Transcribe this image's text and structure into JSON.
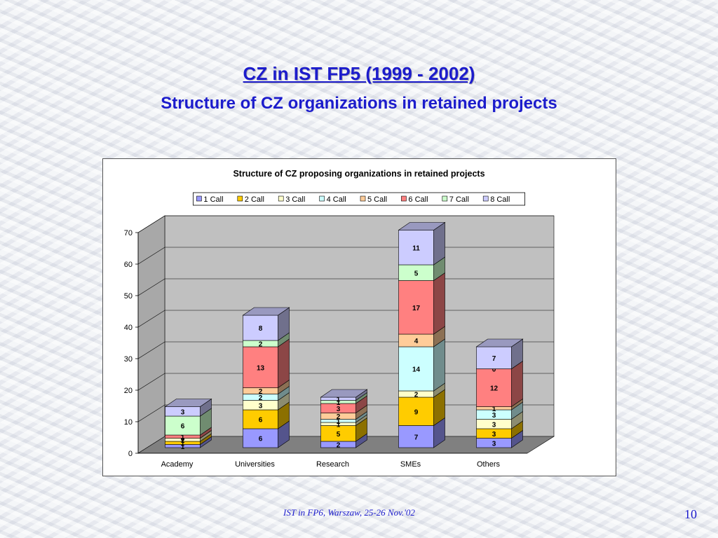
{
  "slide": {
    "title": "CZ in IST FP5 (1999 - 2002)",
    "subtitle": "Structure of CZ organizations in retained projects",
    "footer": "IST in FP6, Warszaw, 25-26 Nov.'02",
    "page_number": "10"
  },
  "chart_data": {
    "type": "bar",
    "stacked": true,
    "three_d": true,
    "title": "Structure of CZ proposing organizations in retained projects",
    "categories": [
      "Academy",
      "Universities",
      "Research",
      "SMEs",
      "Others"
    ],
    "ylim": [
      0,
      70
    ],
    "yticks": [
      0,
      10,
      20,
      30,
      40,
      50,
      60,
      70
    ],
    "grid": true,
    "legend_position": "top",
    "series": [
      {
        "name": "1 Call",
        "color": "#9999ff",
        "values": [
          1,
          6,
          2,
          7,
          3
        ],
        "labels": [
          "1",
          "6",
          "2",
          "7",
          "3"
        ]
      },
      {
        "name": "2 Call",
        "color": "#ffcc00",
        "values": [
          1,
          6,
          5,
          9,
          3
        ],
        "labels": [
          "1",
          "6",
          "5",
          "9",
          "3"
        ]
      },
      {
        "name": "3 Call",
        "color": "#ffffcc",
        "values": [
          1,
          3,
          1,
          2,
          3
        ],
        "labels": [
          "1",
          "3",
          "1",
          "2",
          "3"
        ]
      },
      {
        "name": "4 Call",
        "color": "#ccffff",
        "values": [
          0,
          2,
          1,
          14,
          3
        ],
        "labels": [
          "0",
          "2",
          "1",
          "14",
          "3"
        ]
      },
      {
        "name": "5 Call",
        "color": "#ffcc99",
        "values": [
          0,
          2,
          2,
          4,
          1
        ],
        "labels": [
          "0",
          "2",
          "2",
          "4",
          "1"
        ]
      },
      {
        "name": "6 Call",
        "color": "#ff8080",
        "values": [
          1,
          13,
          3,
          17,
          12
        ],
        "labels": [
          "1",
          "13",
          "3",
          "17",
          "12"
        ]
      },
      {
        "name": "7 Call",
        "color": "#ccffcc",
        "values": [
          6,
          2,
          1,
          5,
          0
        ],
        "labels": [
          "6",
          "2",
          "1",
          "5",
          "0"
        ]
      },
      {
        "name": "8 Call",
        "color": "#ccccff",
        "values": [
          3,
          8,
          1,
          11,
          7
        ],
        "labels": [
          "3",
          "8",
          "1",
          "11",
          "7"
        ]
      }
    ],
    "colors": {
      "plot_wall": "#c0c0c0",
      "plot_floor": "#808080",
      "axis_text": "#000000"
    }
  }
}
